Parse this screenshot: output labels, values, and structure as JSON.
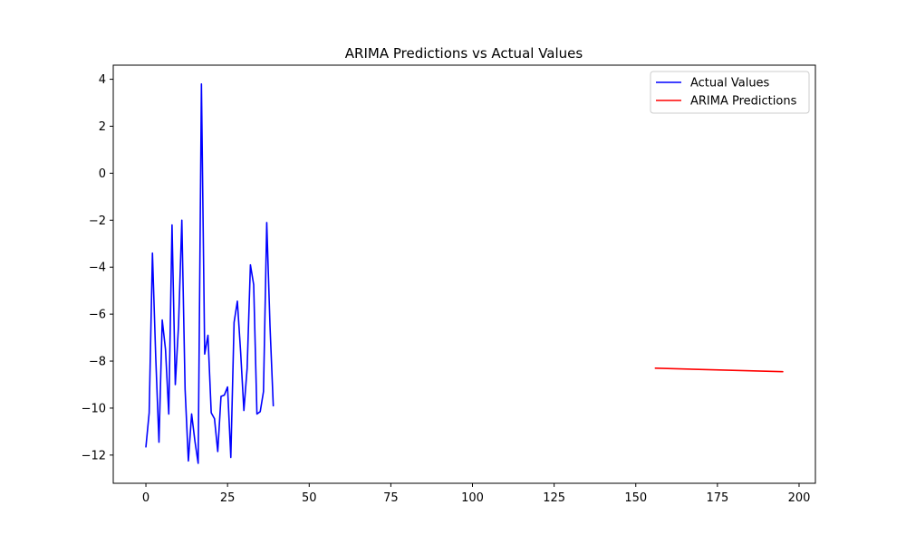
{
  "chart_data": {
    "type": "line",
    "title": "ARIMA Predictions vs Actual Values",
    "xlabel": "",
    "ylabel": "",
    "xlim": [
      -10,
      205
    ],
    "ylim": [
      -13.2,
      4.6
    ],
    "xticks": [
      0,
      25,
      50,
      75,
      100,
      125,
      150,
      175,
      200
    ],
    "yticks": [
      -12,
      -10,
      -8,
      -6,
      -4,
      -2,
      0,
      2,
      4
    ],
    "grid": false,
    "legend_position": "upper right",
    "series": [
      {
        "name": "Actual Values",
        "color": "#0000ff",
        "x": [
          0,
          1,
          2,
          3,
          4,
          5,
          6,
          7,
          8,
          9,
          10,
          11,
          12,
          13,
          14,
          15,
          16,
          17,
          18,
          19,
          20,
          21,
          22,
          23,
          24,
          25,
          26,
          27,
          28,
          29,
          30,
          31,
          32,
          33,
          34,
          35,
          36,
          37,
          38,
          39
        ],
        "y": [
          -11.65,
          -10.2,
          -3.4,
          -7.8,
          -11.45,
          -6.25,
          -7.5,
          -10.25,
          -2.2,
          -9.0,
          -6.45,
          -2.0,
          -9.2,
          -12.25,
          -10.25,
          -11.4,
          -12.35,
          3.8,
          -7.7,
          -6.9,
          -10.2,
          -10.45,
          -11.85,
          -9.5,
          -9.45,
          -9.1,
          -12.1,
          -6.35,
          -5.45,
          -7.6,
          -10.1,
          -8.3,
          -3.9,
          -4.75,
          -10.25,
          -10.15,
          -9.3,
          -2.1,
          -6.5,
          -9.9
        ]
      },
      {
        "name": "ARIMA Predictions",
        "color": "#ff0000",
        "x": [
          156,
          195
        ],
        "y": [
          -8.3,
          -8.45
        ]
      }
    ]
  }
}
